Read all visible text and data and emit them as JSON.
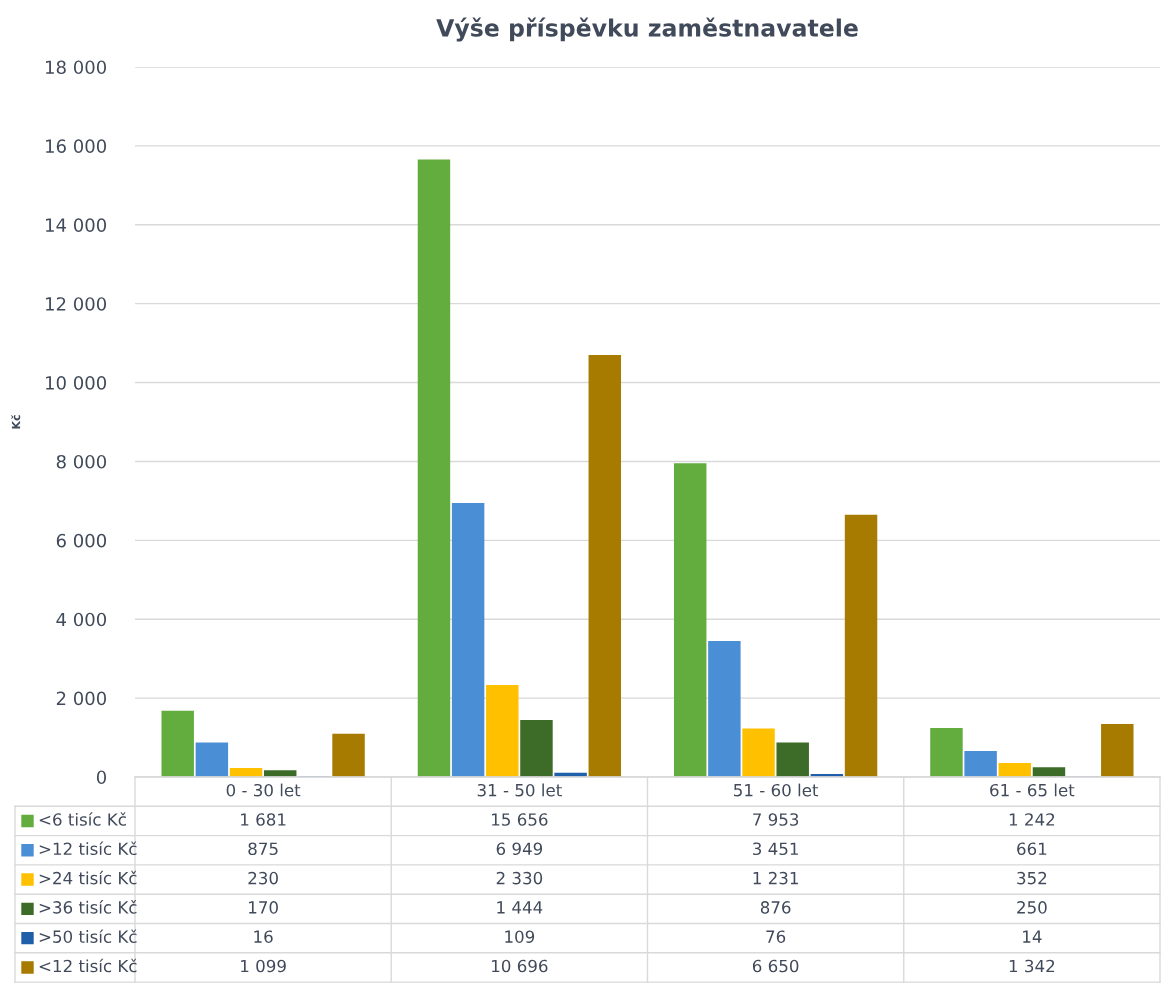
{
  "chart_data": {
    "type": "bar",
    "title": "Výše příspěvku zaměstnavatele",
    "ylabel": "Kč",
    "categories": [
      "0 - 30 let",
      "31 - 50 let",
      "51 - 60 let",
      "61 - 65 let"
    ],
    "series": [
      {
        "name": "<6 tisíc Kč",
        "color": "#62ad3e",
        "values": [
          1681,
          15656,
          7953,
          1242
        ],
        "value_labels": [
          "1 681",
          "15 656",
          "7 953",
          "1 242"
        ]
      },
      {
        "name": ">12 tisíc Kč",
        "color": "#4a8fd6",
        "values": [
          875,
          6949,
          3451,
          661
        ],
        "value_labels": [
          "875",
          "6 949",
          "3 451",
          "661"
        ]
      },
      {
        "name": ">24 tisíc Kč",
        "color": "#ffc000",
        "values": [
          230,
          2330,
          1231,
          352
        ],
        "value_labels": [
          "230",
          "2 330",
          "1 231",
          "352"
        ]
      },
      {
        "name": ">36 tisíc Kč",
        "color": "#3d6b28",
        "values": [
          170,
          1444,
          876,
          250
        ],
        "value_labels": [
          "170",
          "1 444",
          "876",
          "250"
        ]
      },
      {
        "name": ">50 tisíc Kč",
        "color": "#1f5ea8",
        "values": [
          16,
          109,
          76,
          14
        ],
        "value_labels": [
          "16",
          "109",
          "76",
          "14"
        ]
      },
      {
        "name": "<12 tisíc Kč",
        "color": "#a77a00",
        "values": [
          1099,
          10696,
          6650,
          1342
        ],
        "value_labels": [
          "1 099",
          "10 696",
          "6 650",
          "1 342"
        ]
      }
    ],
    "ylim": [
      0,
      18000
    ],
    "yticks": [
      {
        "value": 0,
        "label": "0"
      },
      {
        "value": 2000,
        "label": "2 000"
      },
      {
        "value": 4000,
        "label": "4 000"
      },
      {
        "value": 6000,
        "label": "6 000"
      },
      {
        "value": 8000,
        "label": "8 000"
      },
      {
        "value": 10000,
        "label": "10 000"
      },
      {
        "value": 12000,
        "label": "12 000"
      },
      {
        "value": 14000,
        "label": "14 000"
      },
      {
        "value": 16000,
        "label": "16 000"
      },
      {
        "value": 18000,
        "label": "18 000"
      }
    ],
    "grid": "y",
    "legend": "bottom"
  }
}
